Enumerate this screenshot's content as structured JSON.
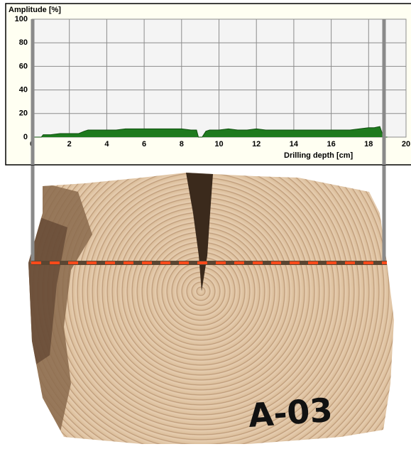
{
  "chart_data": {
    "type": "area",
    "y_label": "Amplitude [%]",
    "x_label": "Drilling depth [cm]",
    "x": [
      0,
      0.5,
      0.6,
      1,
      1.5,
      2,
      2.5,
      2.8,
      3,
      3.5,
      4,
      4.5,
      5,
      5.5,
      6,
      6.5,
      7,
      7.5,
      8,
      8.5,
      8.8,
      8.9,
      9.1,
      9.3,
      9.5,
      10,
      10.5,
      11,
      11.5,
      12,
      12.5,
      13,
      13.5,
      14,
      14.5,
      15,
      15.5,
      16,
      16.5,
      17,
      17.5,
      18,
      18.3,
      18.6,
      18.8,
      19
    ],
    "values": [
      0,
      0,
      2,
      2,
      3,
      3,
      3,
      5,
      6,
      6,
      6,
      6,
      7,
      7,
      7,
      7,
      7,
      7,
      7,
      6,
      6,
      0,
      0,
      5,
      6,
      6,
      7,
      6,
      6,
      7,
      6,
      6,
      6,
      6,
      6,
      6,
      6,
      6,
      6,
      6,
      7,
      8,
      8,
      9,
      0,
      0
    ],
    "color": "#1e7a1e",
    "xlim": [
      0,
      20
    ],
    "xticks": [
      0,
      2,
      4,
      6,
      8,
      10,
      12,
      14,
      16,
      18,
      20
    ],
    "ylim": [
      0,
      100
    ],
    "yticks": [
      0,
      20,
      40,
      60,
      80,
      100
    ],
    "grid": true
  },
  "photo": {
    "label": "A-03"
  }
}
